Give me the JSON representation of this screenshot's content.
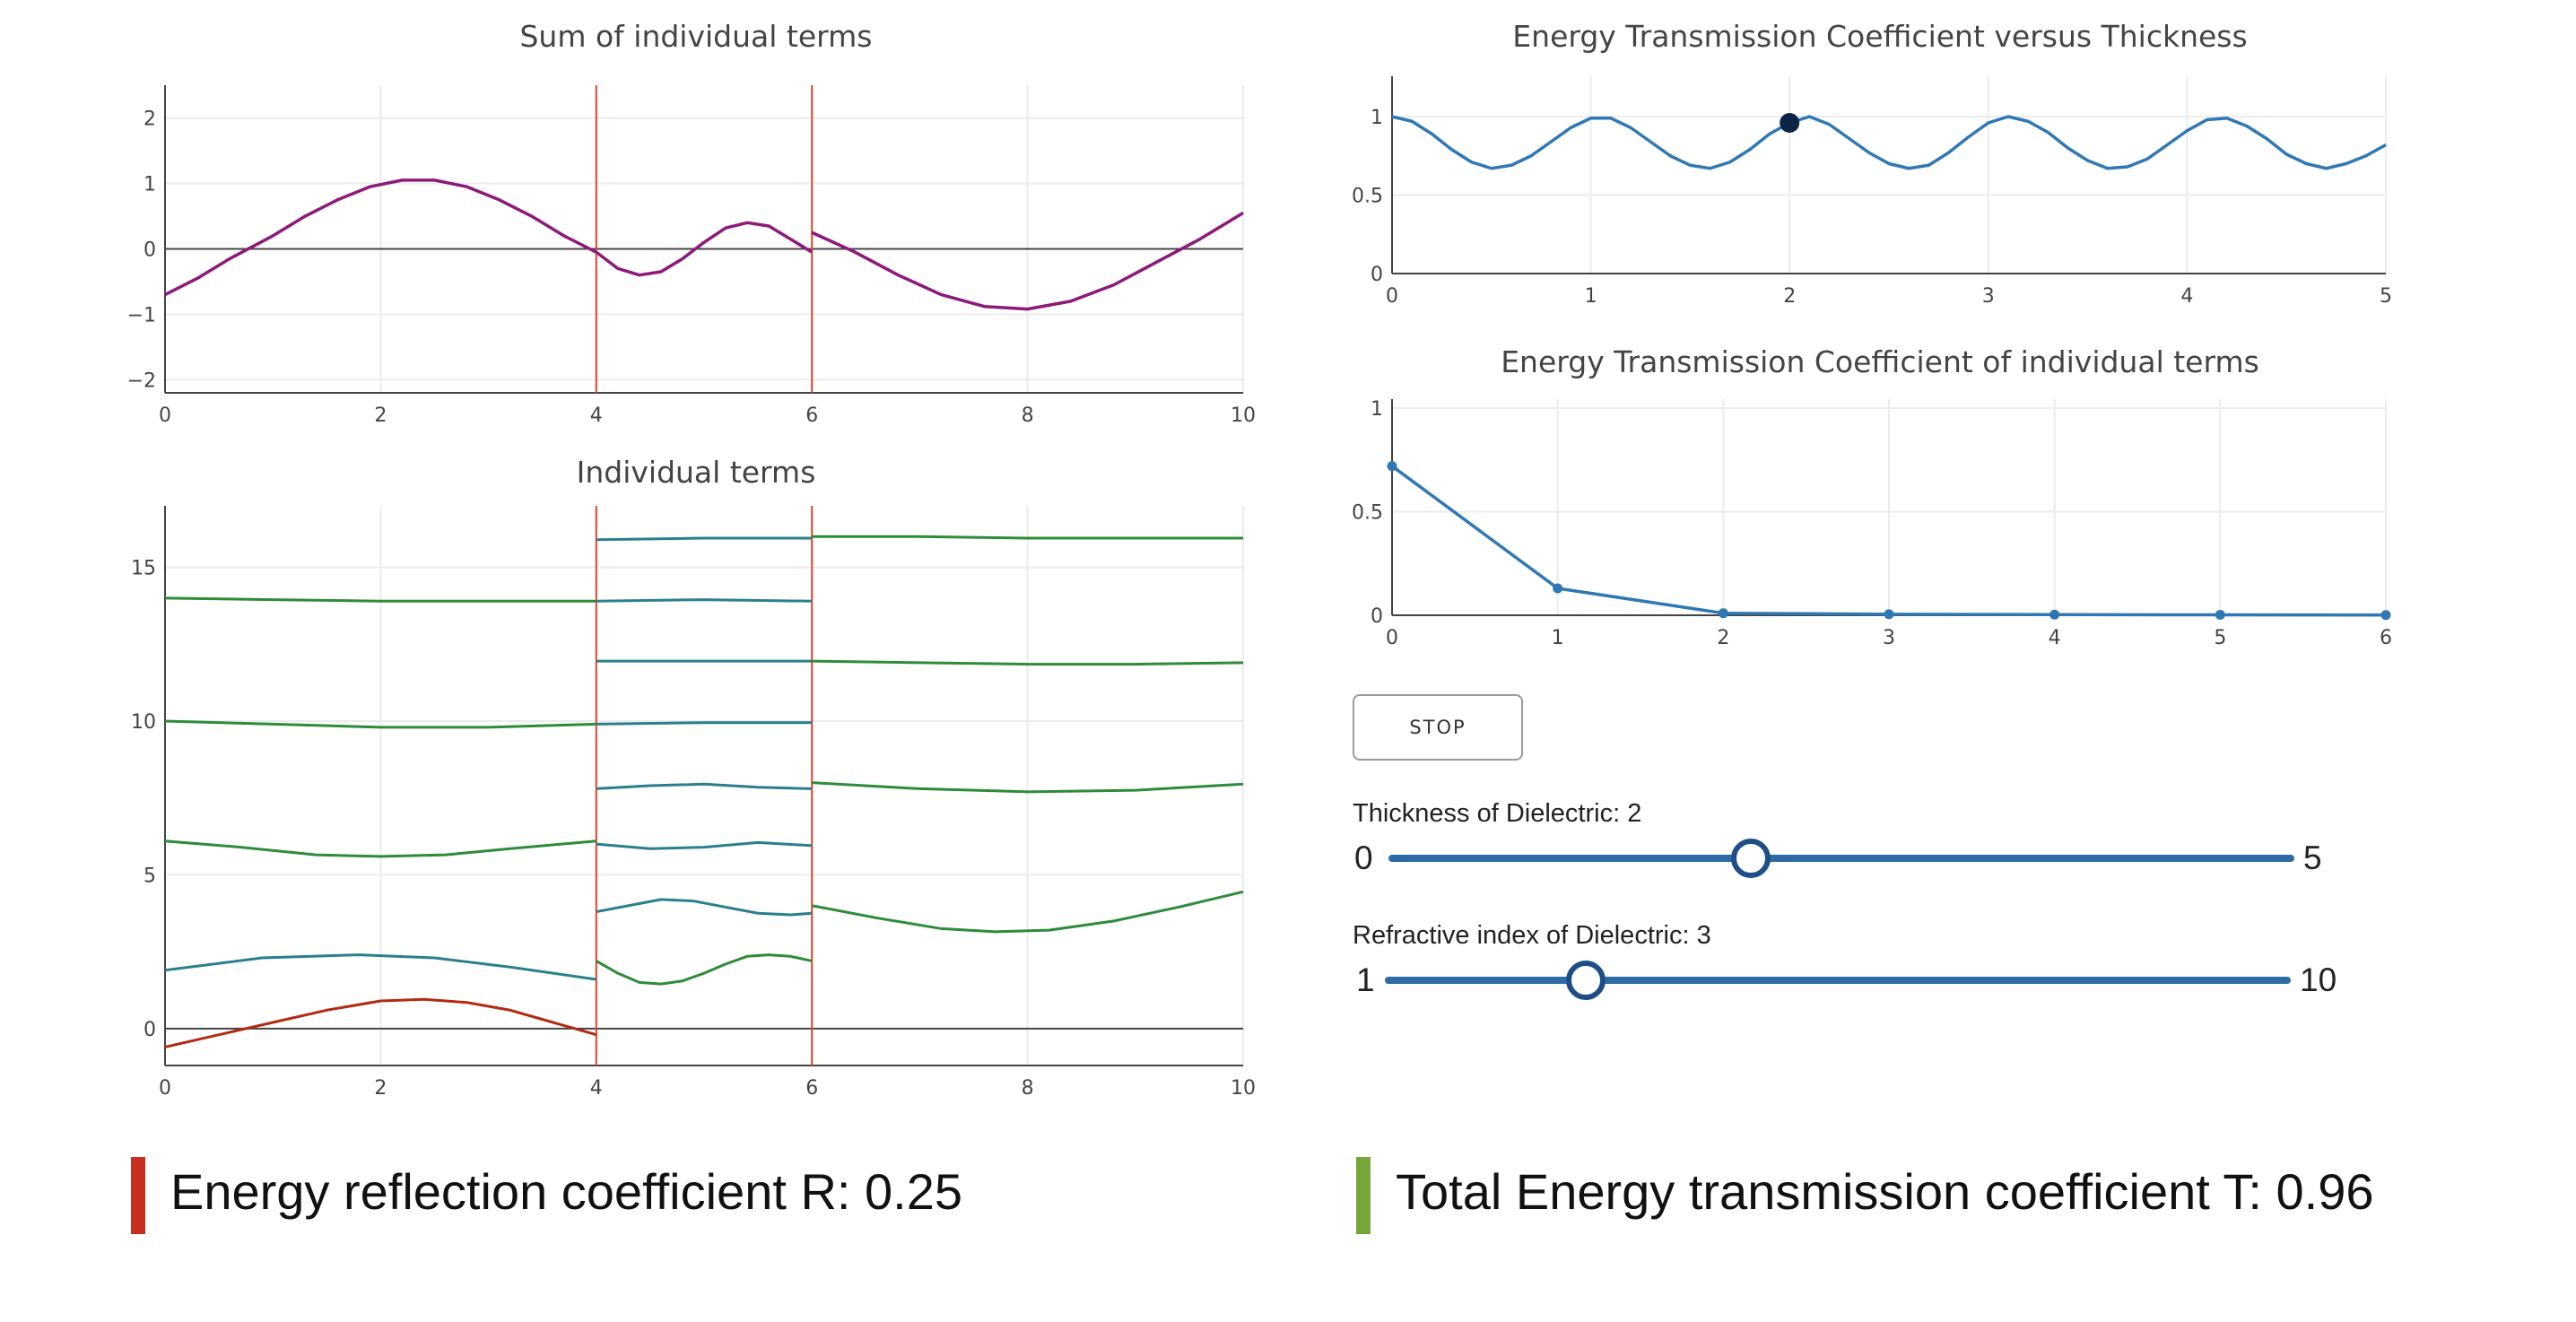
{
  "colors": {
    "sum_curve": "#8b1a7a",
    "boundary": "#e5432a",
    "green": "#2e8b3a",
    "teal": "#2a7f8f",
    "red_term": "#b22a10",
    "blue": "#2f78b4",
    "marker": "#0d2447",
    "reflection_bar": "#c62f1f",
    "transmission_bar": "#78a63a"
  },
  "plots": {
    "sum": {
      "title": "Sum of individual terms",
      "xticks": [
        "0",
        "2",
        "4",
        "6",
        "8",
        "10"
      ],
      "yticks": [
        "2",
        "1",
        "0",
        "−1",
        "−2"
      ]
    },
    "terms": {
      "title": "Individual terms",
      "xticks": [
        "0",
        "2",
        "4",
        "6",
        "8",
        "10"
      ],
      "yticks": [
        "15",
        "10",
        "5",
        "0"
      ]
    },
    "thickness": {
      "title": "Energy Transmission Coefficient versus Thickness",
      "xticks": [
        "0",
        "1",
        "2",
        "3",
        "4",
        "5"
      ],
      "yticks": [
        "1",
        "0.5",
        "0"
      ]
    },
    "individual": {
      "title": "Energy Transmission Coefficient of individual terms",
      "xticks": [
        "0",
        "1",
        "2",
        "3",
        "4",
        "5",
        "6"
      ],
      "yticks": [
        "1",
        "0.5",
        "0"
      ]
    }
  },
  "chart_data": [
    {
      "type": "line",
      "title": "Sum of individual terms",
      "xlim": [
        0,
        10
      ],
      "ylim": [
        -2.2,
        2.2
      ],
      "boundaries": [
        4,
        6
      ],
      "series": [
        {
          "x": [
            0,
            0.3,
            0.6,
            1,
            1.3,
            1.6,
            1.9,
            2.2,
            2.5,
            2.8,
            3.1,
            3.4,
            3.7,
            4
          ],
          "y": [
            -0.7,
            -0.45,
            -0.15,
            0.2,
            0.5,
            0.75,
            0.95,
            1.05,
            1.05,
            0.95,
            0.75,
            0.5,
            0.2,
            -0.05
          ]
        },
        {
          "x": [
            4,
            4.2,
            4.4,
            4.6,
            4.8,
            5,
            5.2,
            5.4,
            5.6,
            5.8,
            6
          ],
          "y": [
            -0.05,
            -0.3,
            -0.4,
            -0.35,
            -0.15,
            0.1,
            0.32,
            0.4,
            0.35,
            0.15,
            -0.05
          ]
        },
        {
          "x": [
            6,
            6.4,
            6.8,
            7.2,
            7.6,
            8,
            8.4,
            8.8,
            9.2,
            9.6,
            10
          ],
          "y": [
            0.25,
            -0.05,
            -0.4,
            -0.7,
            -0.88,
            -0.92,
            -0.8,
            -0.55,
            -0.2,
            0.15,
            0.55
          ]
        }
      ]
    },
    {
      "type": "line",
      "title": "Individual terms",
      "xlim": [
        0,
        10
      ],
      "ylim": [
        -1.2,
        17
      ],
      "boundaries": [
        4,
        6
      ],
      "series": [
        {
          "color": "green",
          "x": [
            0,
            1,
            2,
            3,
            4
          ],
          "y": [
            14,
            13.95,
            13.9,
            13.9,
            13.9
          ]
        },
        {
          "color": "green",
          "x": [
            0,
            1,
            2,
            3,
            4
          ],
          "y": [
            10.0,
            9.9,
            9.8,
            9.8,
            9.9
          ]
        },
        {
          "color": "green",
          "x": [
            0,
            0.7,
            1.4,
            2,
            2.6,
            3.2,
            4
          ],
          "y": [
            6.1,
            5.9,
            5.65,
            5.6,
            5.65,
            5.85,
            6.1
          ]
        },
        {
          "color": "teal",
          "x": [
            0,
            0.9,
            1.8,
            2.5,
            3.2,
            4
          ],
          "y": [
            1.9,
            2.3,
            2.4,
            2.3,
            2.0,
            1.6
          ]
        },
        {
          "color": "red_term",
          "x": [
            0,
            0.5,
            1,
            1.5,
            2,
            2.4,
            2.8,
            3.2,
            3.6,
            4
          ],
          "y": [
            -0.6,
            -0.2,
            0.2,
            0.6,
            0.9,
            0.95,
            0.85,
            0.6,
            0.2,
            -0.2
          ]
        },
        {
          "color": "teal",
          "x": [
            4,
            5,
            6
          ],
          "y": [
            15.9,
            15.95,
            15.95
          ]
        },
        {
          "color": "teal",
          "x": [
            4,
            5,
            6
          ],
          "y": [
            13.9,
            13.95,
            13.9
          ]
        },
        {
          "color": "teal",
          "x": [
            4,
            5,
            6
          ],
          "y": [
            11.95,
            11.95,
            11.95
          ]
        },
        {
          "color": "teal",
          "x": [
            4,
            5,
            6
          ],
          "y": [
            9.9,
            9.95,
            9.95
          ]
        },
        {
          "color": "teal",
          "x": [
            4,
            4.5,
            5,
            5.5,
            6
          ],
          "y": [
            7.8,
            7.9,
            7.95,
            7.85,
            7.8
          ]
        },
        {
          "color": "teal",
          "x": [
            4,
            4.5,
            5,
            5.5,
            6
          ],
          "y": [
            6.0,
            5.85,
            5.9,
            6.05,
            5.95
          ]
        },
        {
          "color": "teal",
          "x": [
            4,
            4.3,
            4.6,
            4.9,
            5.2,
            5.5,
            5.8,
            6
          ],
          "y": [
            3.8,
            4.0,
            4.2,
            4.15,
            3.95,
            3.75,
            3.7,
            3.75
          ]
        },
        {
          "color": "green",
          "x": [
            4,
            4.2,
            4.4,
            4.6,
            4.8,
            5,
            5.2,
            5.4,
            5.6,
            5.8,
            6
          ],
          "y": [
            2.2,
            1.8,
            1.5,
            1.45,
            1.55,
            1.8,
            2.1,
            2.35,
            2.4,
            2.35,
            2.2
          ]
        },
        {
          "color": "green",
          "x": [
            6,
            7,
            8,
            9,
            10
          ],
          "y": [
            16,
            16,
            15.95,
            15.95,
            15.95
          ]
        },
        {
          "color": "green",
          "x": [
            6,
            7,
            8,
            9,
            10
          ],
          "y": [
            11.95,
            11.9,
            11.85,
            11.85,
            11.9
          ]
        },
        {
          "color": "green",
          "x": [
            6,
            7,
            8,
            9,
            10
          ],
          "y": [
            8.0,
            7.8,
            7.7,
            7.75,
            7.95
          ]
        },
        {
          "color": "green",
          "x": [
            6,
            6.6,
            7.2,
            7.7,
            8.2,
            8.8,
            9.4,
            10
          ],
          "y": [
            4.0,
            3.6,
            3.25,
            3.15,
            3.2,
            3.5,
            3.95,
            4.45
          ]
        }
      ]
    },
    {
      "type": "line",
      "title": "Energy Transmission Coefficient versus Thickness",
      "xlim": [
        0,
        5
      ],
      "ylim": [
        0,
        1.2
      ],
      "series": [
        {
          "name": "T",
          "x": [
            0,
            0.1,
            0.2,
            0.3,
            0.4,
            0.5,
            0.6,
            0.7,
            0.8,
            0.9,
            1.0,
            1.1,
            1.2,
            1.3,
            1.4,
            1.5,
            1.6,
            1.7,
            1.8,
            1.9,
            2.0,
            2.1,
            2.2,
            2.3,
            2.4,
            2.5,
            2.6,
            2.7,
            2.8,
            2.9,
            3.0,
            3.1,
            3.2,
            3.3,
            3.4,
            3.5,
            3.6,
            3.7,
            3.8,
            3.9,
            4.0,
            4.1,
            4.2,
            4.3,
            4.4,
            4.5,
            4.6,
            4.7,
            4.8,
            4.9,
            5.0
          ],
          "y": [
            1.0,
            0.97,
            0.89,
            0.79,
            0.71,
            0.67,
            0.69,
            0.75,
            0.84,
            0.93,
            0.99,
            0.99,
            0.93,
            0.84,
            0.75,
            0.69,
            0.67,
            0.71,
            0.79,
            0.89,
            0.96,
            1.0,
            0.95,
            0.86,
            0.77,
            0.7,
            0.67,
            0.69,
            0.77,
            0.87,
            0.96,
            1.0,
            0.97,
            0.9,
            0.8,
            0.72,
            0.67,
            0.68,
            0.73,
            0.82,
            0.91,
            0.98,
            0.99,
            0.94,
            0.86,
            0.76,
            0.7,
            0.67,
            0.7,
            0.75,
            0.82
          ]
        },
        {
          "name": "current",
          "x": [
            2
          ],
          "y": [
            0.96
          ]
        }
      ]
    },
    {
      "type": "line",
      "title": "Energy Transmission Coefficient of individual terms",
      "xlim": [
        0,
        6
      ],
      "ylim": [
        0,
        1
      ],
      "series": [
        {
          "name": "terms",
          "x": [
            0,
            1,
            2,
            3,
            4,
            5,
            6
          ],
          "y": [
            0.72,
            0.13,
            0.01,
            0.005,
            0.003,
            0.002,
            0.001
          ]
        }
      ]
    }
  ],
  "controls": {
    "stop_label": "STOP",
    "thickness": {
      "label": "Thickness of Dielectric: 2",
      "min": "0",
      "max": "5",
      "value": 2,
      "range": [
        0,
        5
      ]
    },
    "refractive": {
      "label": "Refractive index of Dielectric: 3",
      "min": "1",
      "max": "10",
      "value": 3,
      "range": [
        1,
        10
      ]
    }
  },
  "results": {
    "reflection": "Energy reflection coefficient R: 0.25",
    "transmission": "Total Energy transmission coefficient T: 0.96"
  }
}
